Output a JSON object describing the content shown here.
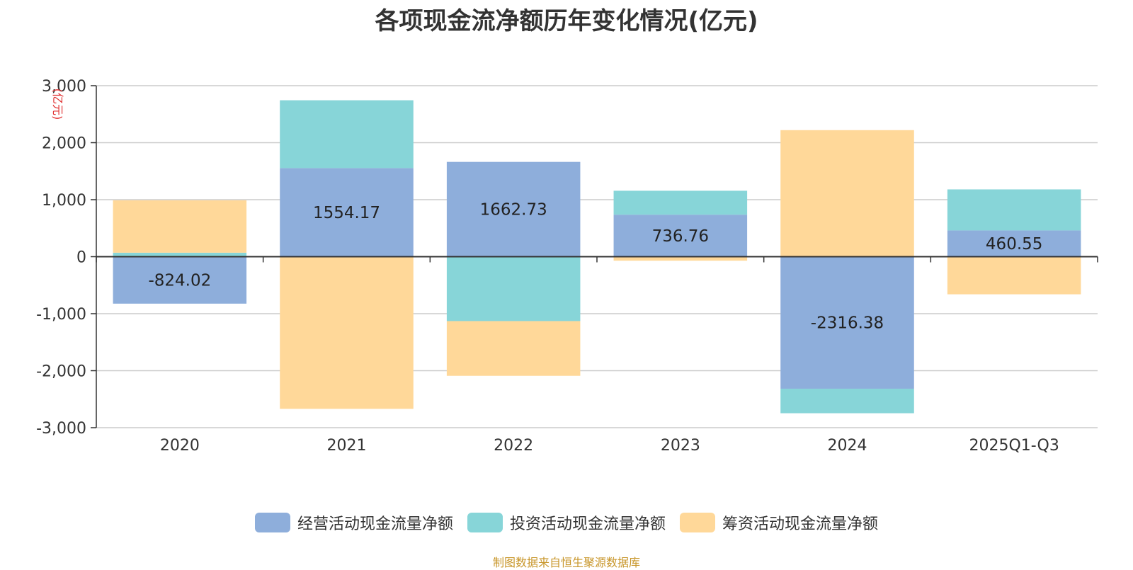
{
  "chart_data": {
    "type": "bar",
    "stacked": true,
    "title": "各项现金流净额历年变化情况(亿元)",
    "ylabel": "(亿元)",
    "xlabel": "",
    "ylim": [
      -3000,
      3000
    ],
    "yticks": [
      3000,
      2000,
      1000,
      0,
      -1000,
      -2000,
      -3000
    ],
    "ytick_labels": [
      "3,000",
      "2,000",
      "1,000",
      "0",
      "-1,000",
      "-2,000",
      "-3,000"
    ],
    "categories": [
      "2020",
      "2021",
      "2022",
      "2023",
      "2024",
      "2025Q1-Q3"
    ],
    "grid": true,
    "legend_position": "bottom",
    "series": [
      {
        "name": "经营活动现金流量净额",
        "color": "#8eaedb",
        "values": [
          -824.02,
          1554.17,
          1662.73,
          736.76,
          -2316.38,
          460.55
        ],
        "show_labels": true
      },
      {
        "name": "投资活动现金流量净额",
        "color": "#87d5d8",
        "values": [
          70,
          1190,
          -1130,
          420,
          -430,
          720
        ],
        "show_labels": false
      },
      {
        "name": "筹资活动现金流量净额",
        "color": "#ffd899",
        "values": [
          920,
          -2670,
          -960,
          -70,
          2220,
          -660
        ],
        "show_labels": false
      }
    ]
  },
  "footer": "制图数据来自恒生聚源数据库"
}
